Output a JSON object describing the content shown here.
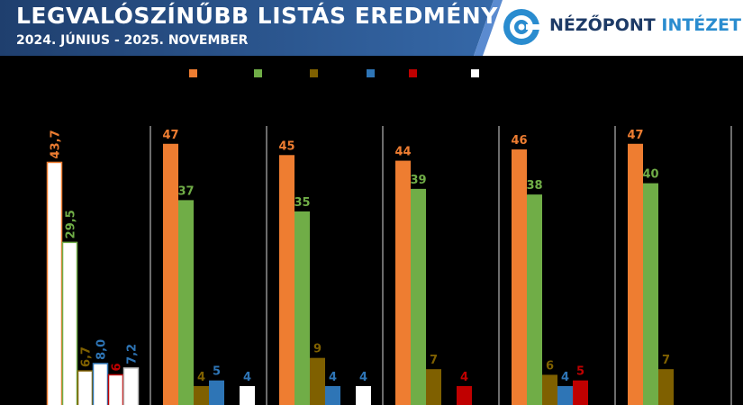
{
  "header": {
    "title": "LEGVALÓSZÍNŰBB LISTÁS EREDMÉNY",
    "subtitle": "2024. JÚNIUS - 2025. NOVEMBER",
    "brand_part1": "NÉZŐPONT",
    "brand_part2": "INTÉZET"
  },
  "colors": {
    "orange": "#ee7d31",
    "green": "#70ad47",
    "brown": "#7f6000",
    "blue": "#2e75b6",
    "red": "#c00000",
    "white": "#ffffff",
    "header_blue_dark": "#1f3f6e",
    "header_blue_light": "#3568a8"
  },
  "chart_data": {
    "type": "bar",
    "groups": [
      {
        "values": [
          43.7,
          29.5,
          6.7,
          8.0,
          6,
          7.2
        ],
        "labels": [
          "43,7",
          "29,5",
          "6,7",
          "8,0",
          "6",
          "7,2"
        ],
        "style": "outline"
      },
      {
        "values": [
          47,
          37,
          4,
          5,
          null,
          4
        ],
        "labels": [
          "47",
          "37",
          "4",
          "5",
          "",
          "4"
        ],
        "style": "solid"
      },
      {
        "values": [
          45,
          35,
          9,
          4,
          null,
          4
        ],
        "labels": [
          "45",
          "35",
          "9",
          "4",
          "",
          "4"
        ],
        "style": "solid"
      },
      {
        "values": [
          44,
          39,
          7,
          null,
          4,
          null
        ],
        "labels": [
          "44",
          "39",
          "7",
          "",
          "4",
          ""
        ],
        "style": "solid"
      },
      {
        "values": [
          46,
          38,
          6,
          4,
          5,
          null
        ],
        "labels": [
          "46",
          "38",
          "6",
          "4",
          "5",
          ""
        ],
        "style": "solid"
      },
      {
        "values": [
          47,
          40,
          7,
          null,
          null,
          null
        ],
        "labels": [
          "47",
          "40",
          "7",
          "",
          "",
          ""
        ],
        "style": "solid"
      }
    ],
    "series_colors": [
      "#ee7d31",
      "#70ad47",
      "#7f6000",
      "#2e75b6",
      "#c00000",
      "#ffffff"
    ],
    "legend_placement": "top-center",
    "grid": false
  }
}
